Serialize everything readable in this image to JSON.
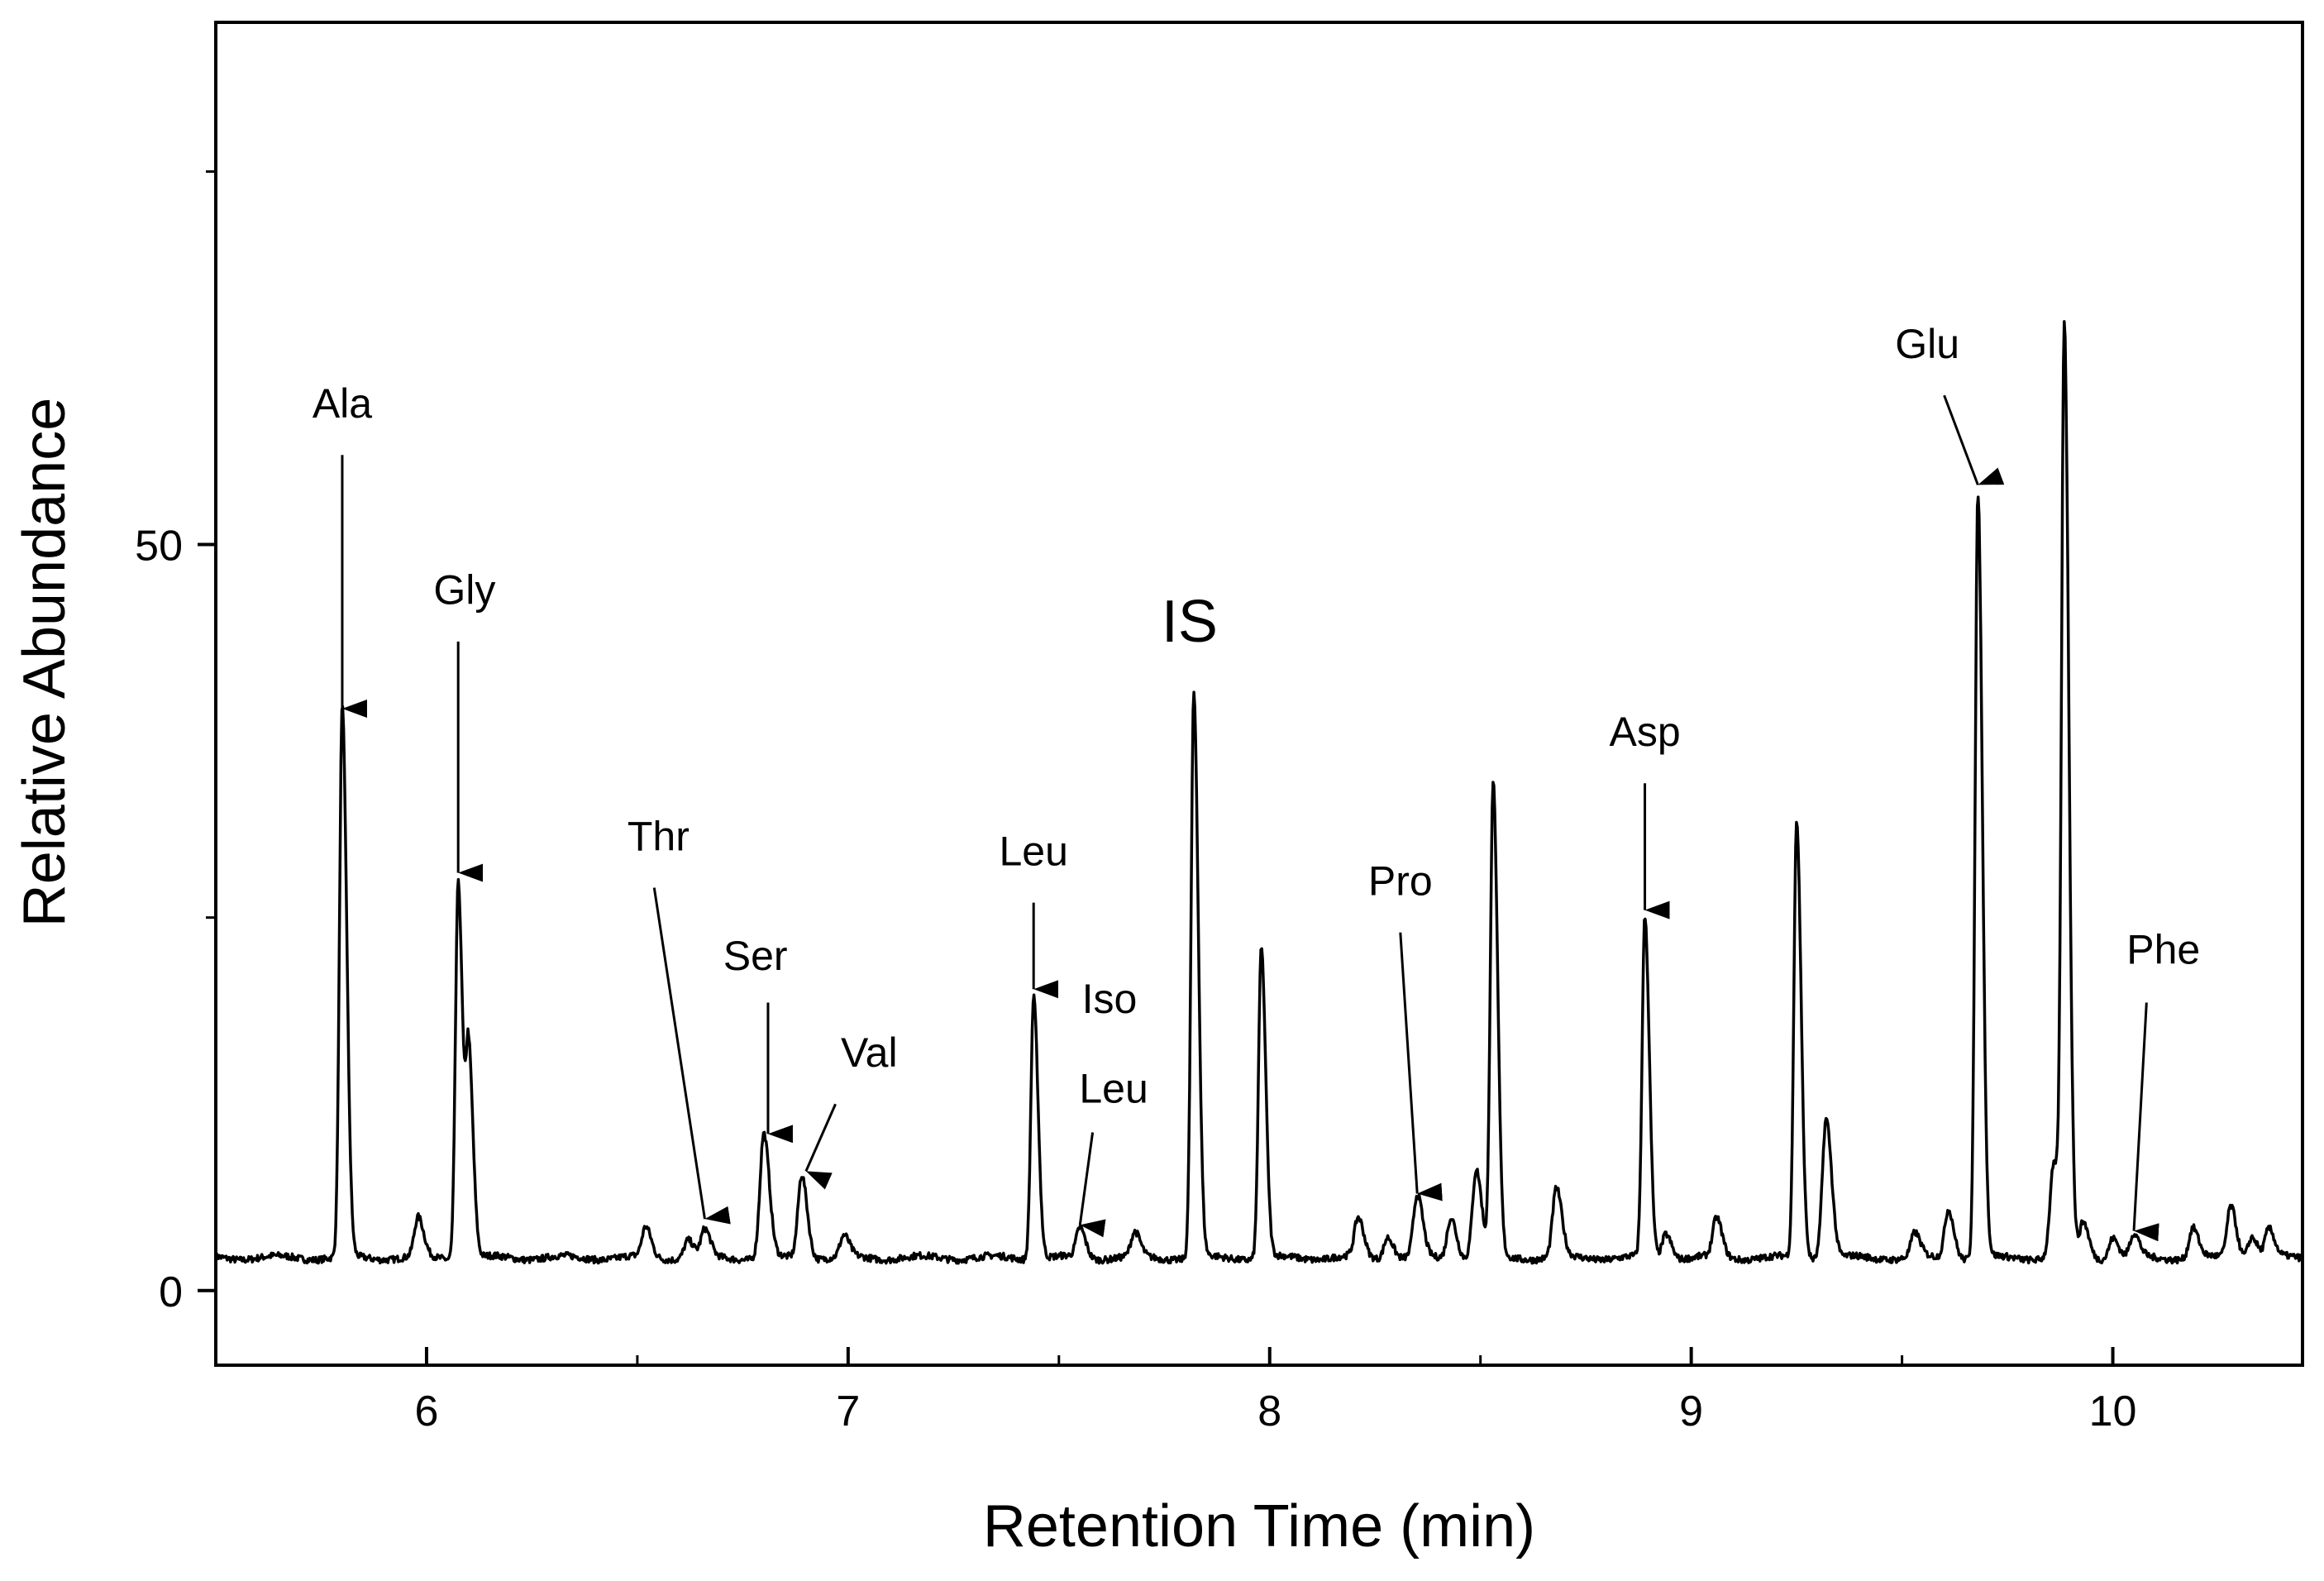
{
  "chart_data": {
    "type": "line",
    "title": "",
    "xlabel": "Retention Time (min)",
    "ylabel": "Relative Abundance",
    "xlim": [
      5.5,
      10.45
    ],
    "ylim": [
      -5,
      85
    ],
    "xticks": [
      6,
      7,
      8,
      9,
      10
    ],
    "xtick_labels": [
      "6",
      "7",
      "8",
      "9",
      "10"
    ],
    "yticks": [
      0,
      50
    ],
    "ytick_labels": [
      "0",
      "50"
    ],
    "grid": false,
    "baseline": 2.2,
    "peaks": [
      {
        "x": 5.8,
        "y": 39
      },
      {
        "x": 5.98,
        "y": 4.8
      },
      {
        "x": 6.075,
        "y": 27.5
      },
      {
        "x": 6.1,
        "y": 15.8
      },
      {
        "x": 6.52,
        "y": 4.2
      },
      {
        "x": 6.62,
        "y": 3.4
      },
      {
        "x": 6.66,
        "y": 4.0
      },
      {
        "x": 6.8,
        "y": 10.5
      },
      {
        "x": 6.89,
        "y": 7.8
      },
      {
        "x": 6.99,
        "y": 3.6
      },
      {
        "x": 7.44,
        "y": 19.8
      },
      {
        "x": 7.55,
        "y": 4.2
      },
      {
        "x": 7.68,
        "y": 3.8
      },
      {
        "x": 7.82,
        "y": 40
      },
      {
        "x": 7.98,
        "y": 23
      },
      {
        "x": 8.21,
        "y": 4.8
      },
      {
        "x": 8.28,
        "y": 3.7
      },
      {
        "x": 8.35,
        "y": 6.3
      },
      {
        "x": 8.43,
        "y": 5.0
      },
      {
        "x": 8.49,
        "y": 8.1
      },
      {
        "x": 8.53,
        "y": 34
      },
      {
        "x": 8.68,
        "y": 6.8
      },
      {
        "x": 8.89,
        "y": 25
      },
      {
        "x": 8.94,
        "y": 3.9
      },
      {
        "x": 9.06,
        "y": 4.8
      },
      {
        "x": 9.25,
        "y": 31.5
      },
      {
        "x": 9.32,
        "y": 11.6
      },
      {
        "x": 9.53,
        "y": 3.8
      },
      {
        "x": 9.61,
        "y": 5.5
      },
      {
        "x": 9.68,
        "y": 53.5
      },
      {
        "x": 9.86,
        "y": 8.4
      },
      {
        "x": 9.885,
        "y": 64
      },
      {
        "x": 9.93,
        "y": 4.6
      },
      {
        "x": 10.0,
        "y": 3.6
      },
      {
        "x": 10.05,
        "y": 3.7
      },
      {
        "x": 10.19,
        "y": 4.2
      },
      {
        "x": 10.28,
        "y": 5.7
      },
      {
        "x": 10.33,
        "y": 3.7
      },
      {
        "x": 10.37,
        "y": 4.1
      }
    ],
    "annotations": [
      {
        "label": "Ala",
        "text_x": 5.8,
        "text_y": 58.5,
        "arrow_from": [
          5.8,
          56
        ],
        "arrow_to": [
          5.8,
          39
        ],
        "size": "normal"
      },
      {
        "label": "Gly",
        "text_x": 6.09,
        "text_y": 46,
        "arrow_from": [
          6.075,
          43.5
        ],
        "arrow_to": [
          6.075,
          28
        ],
        "size": "normal"
      },
      {
        "label": "Thr",
        "text_x": 6.55,
        "text_y": 29.5,
        "arrow_from": [
          6.54,
          27
        ],
        "arrow_to": [
          6.66,
          4.8
        ],
        "size": "normal"
      },
      {
        "label": "Ser",
        "text_x": 6.78,
        "text_y": 21.5,
        "arrow_from": [
          6.81,
          19.3
        ],
        "arrow_to": [
          6.81,
          10.5
        ],
        "size": "normal"
      },
      {
        "label": "Val",
        "text_x": 7.05,
        "text_y": 15,
        "arrow_from": [
          6.97,
          12.5
        ],
        "arrow_to": [
          6.9,
          8
        ],
        "size": "normal"
      },
      {
        "label": "Leu",
        "text_x": 7.44,
        "text_y": 28.5,
        "arrow_from": [
          7.44,
          26
        ],
        "arrow_to": [
          7.44,
          20.2
        ],
        "size": "normal"
      },
      {
        "label": "Iso",
        "text_x": 7.62,
        "text_y": 18.6,
        "arrow_from": null,
        "arrow_to": null,
        "size": "normal"
      },
      {
        "label": "Leu",
        "text_x": 7.63,
        "text_y": 12.6,
        "arrow_from": [
          7.58,
          10.6
        ],
        "arrow_to": [
          7.55,
          4.4
        ],
        "size": "normal"
      },
      {
        "label": "IS",
        "text_x": 7.81,
        "text_y": 43.5,
        "arrow_from": null,
        "arrow_to": null,
        "size": "big"
      },
      {
        "label": "Pro",
        "text_x": 8.31,
        "text_y": 26.5,
        "arrow_from": [
          8.31,
          24
        ],
        "arrow_to": [
          8.35,
          6.5
        ],
        "size": "normal"
      },
      {
        "label": "Asp",
        "text_x": 8.89,
        "text_y": 36.5,
        "arrow_from": [
          8.89,
          34
        ],
        "arrow_to": [
          8.89,
          25.5
        ],
        "size": "normal"
      },
      {
        "label": "Glu",
        "text_x": 9.56,
        "text_y": 62.5,
        "arrow_from": [
          9.6,
          60
        ],
        "arrow_to": [
          9.68,
          54
        ],
        "size": "normal"
      },
      {
        "label": "Phe",
        "text_x": 10.12,
        "text_y": 21.9,
        "arrow_from": [
          10.08,
          19.3
        ],
        "arrow_to": [
          10.05,
          4
        ],
        "size": "normal"
      }
    ]
  }
}
